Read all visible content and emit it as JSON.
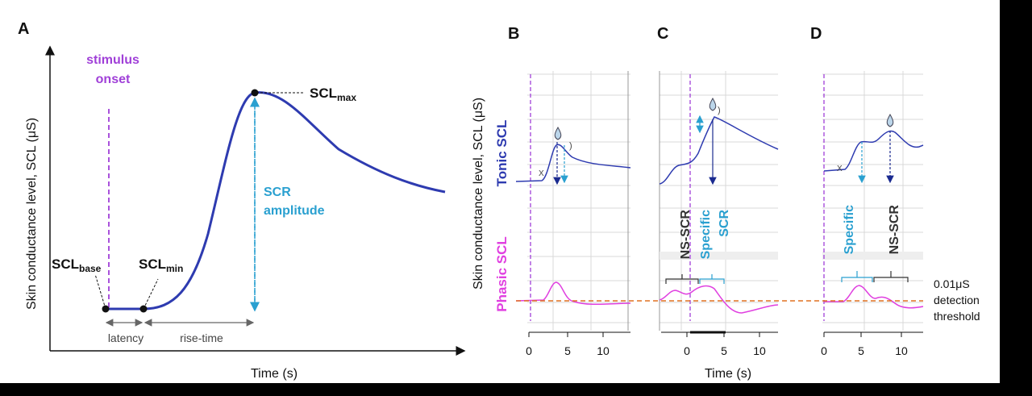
{
  "panels": {
    "A": {
      "letter": "A",
      "ylabel": "Skin conductance level, SCL (μS)",
      "xlabel": "Time (s)",
      "stimulus_line1": "stimulus",
      "stimulus_line2": "onset",
      "scl_base_main": "SCL",
      "scl_base_sub": "base",
      "scl_min_main": "SCL",
      "scl_min_sub": "min",
      "scl_max_main": "SCL",
      "scl_max_sub": "max",
      "scr_line1": "SCR",
      "scr_line2": "amplitude",
      "latency": "latency",
      "rise_time": "rise-time"
    },
    "B": {
      "letter": "B",
      "ticks": [
        "0",
        "5",
        "10"
      ]
    },
    "C": {
      "letter": "C",
      "ticks": [
        "0",
        "5",
        "10"
      ],
      "xlabel": "Time (s)",
      "ns_scr": "NS-SCR",
      "specific_line1": "Specific",
      "specific_line2": "SCR"
    },
    "D": {
      "letter": "D",
      "ticks": [
        "0",
        "5",
        "10"
      ],
      "specific": "Specific",
      "ns_scr": "NS-SCR"
    },
    "shared": {
      "ylabel": "Skin conductance level, SCL (μS)",
      "tonic": "Tonic SCL",
      "phasic": "Phasic SCL",
      "threshold_line1": "0.01μS",
      "threshold_line2": "detection",
      "threshold_line3": "threshold"
    }
  },
  "colors": {
    "curve": "#2e3bb0",
    "stimulus": "#a040d8",
    "scr": "#2aa0d0",
    "phasic": "#e040e0",
    "threshold": "#e07020",
    "label": "#1a1a1a"
  }
}
